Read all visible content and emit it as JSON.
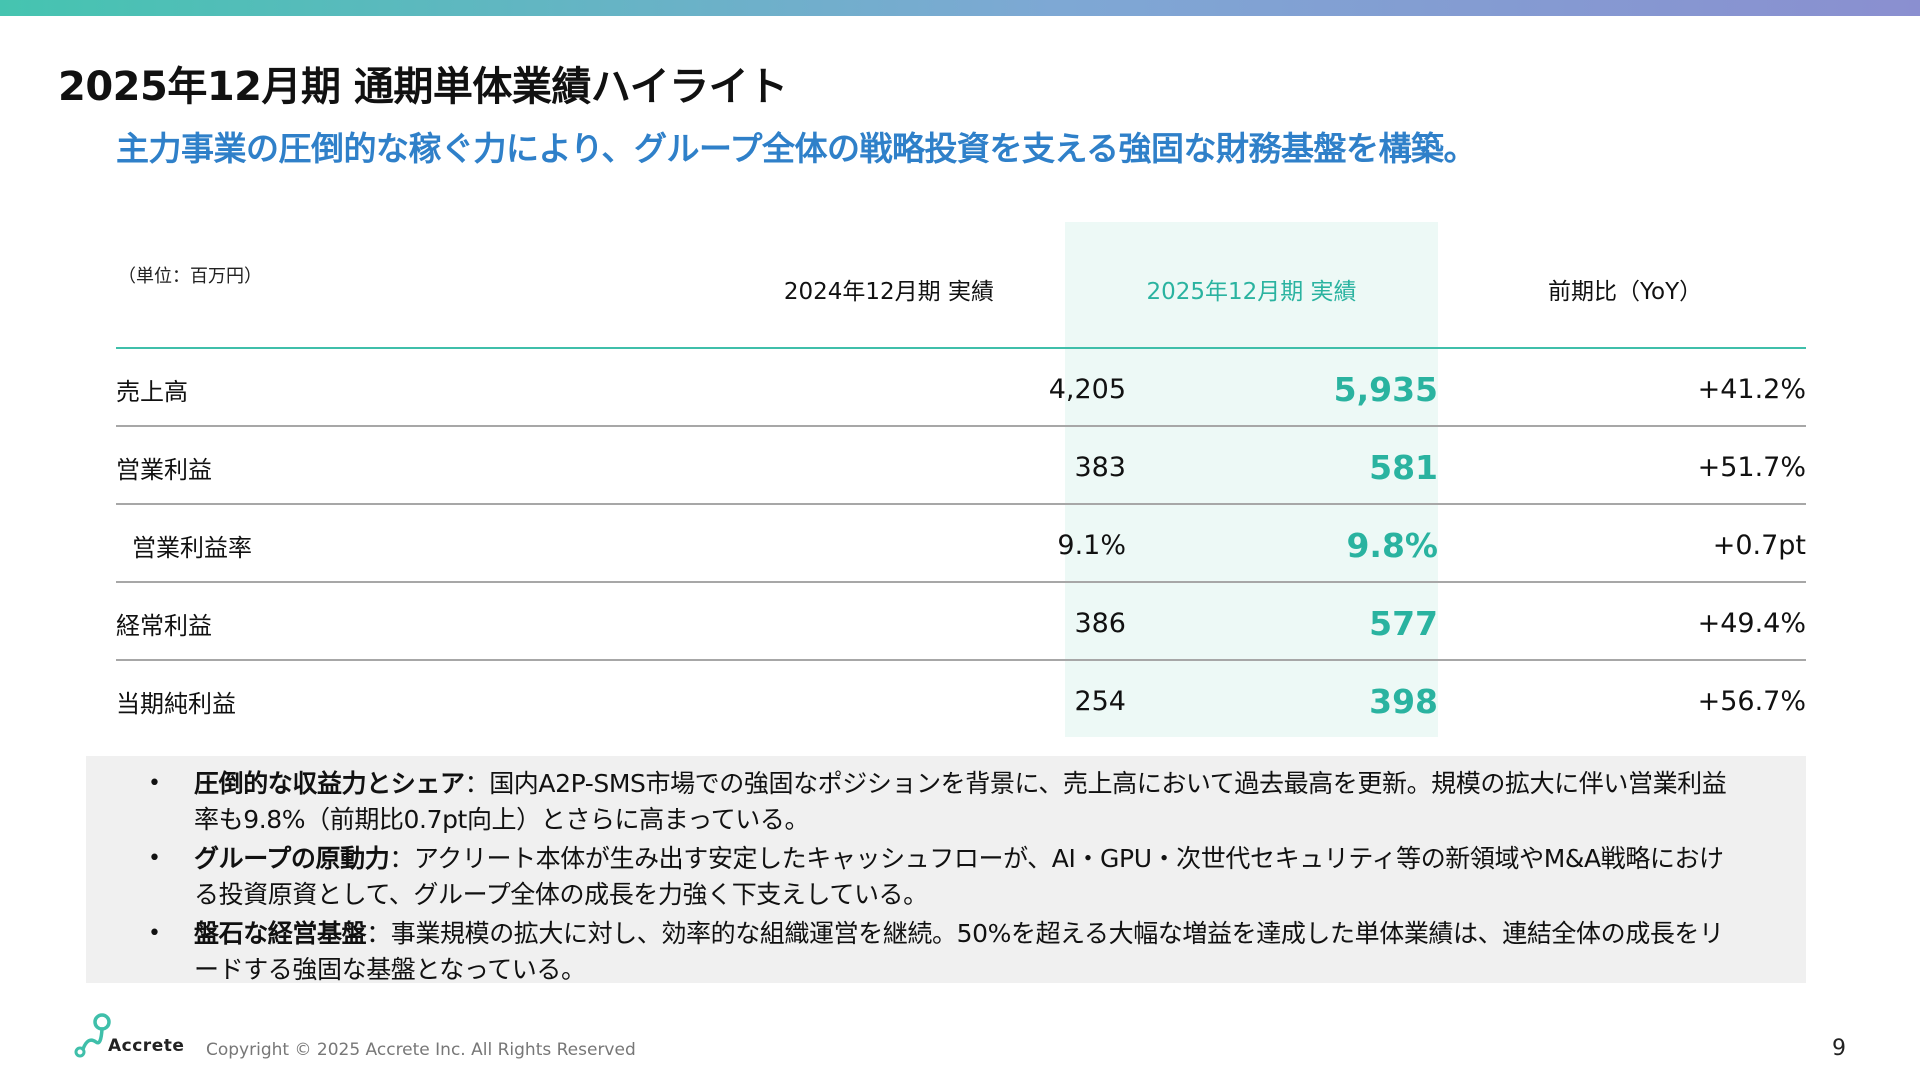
{
  "colors": {
    "accent_teal": "#2ab3a0",
    "subtitle_blue": "#2f80c9",
    "highlight_bg": "#edf9f6",
    "notes_bg": "#f0f0f0"
  },
  "title": "2025年12月期 通期単体業績ハイライト",
  "subtitle": "主力事業の圧倒的な稼ぐ力により、グループ全体の戦略投資を支える強固な財務基盤を構築。",
  "table": {
    "unit_note": "（単位：百万円）",
    "headers": {
      "prev": "2024年12月期 実績",
      "curr": "2025年12月期 実績",
      "yoy": "前期比（YoY）"
    },
    "rows": [
      {
        "label": "売上高",
        "prev": "4,205",
        "curr": "5,935",
        "yoy": "+41.2%"
      },
      {
        "label": "営業利益",
        "prev": "383",
        "curr": "581",
        "yoy": "+51.7%"
      },
      {
        "label": "営業利益率",
        "prev": "9.1%",
        "curr": "9.8%",
        "yoy": "+0.7pt"
      },
      {
        "label": "経常利益",
        "prev": "386",
        "curr": "577",
        "yoy": "+49.4%"
      },
      {
        "label": "当期純利益",
        "prev": "254",
        "curr": "398",
        "yoy": "+56.7%"
      }
    ]
  },
  "notes": [
    {
      "bullet": "•",
      "head": "圧倒的な収益力とシェア",
      "text": "：国内A2P-SMS市場での強固なポジションを背景に、売上高において過去最高を更新。規模の拡大に伴い営業利益率も9.8%（前期比0.7pt向上）とさらに高まっている。"
    },
    {
      "bullet": "•",
      "head": "グループの原動力",
      "text": "：アクリート本体が生み出す安定したキャッシュフローが、AI・GPU・次世代セキュリティ等の新領域やM&A戦略における投資原資として、グループ全体の成長を力強く下支えしている。"
    },
    {
      "bullet": "•",
      "head": "盤石な経営基盤",
      "text": "：事業規模の拡大に対し、効率的な組織運営を継続。50%を超える大幅な増益を達成した単体業績は、連結全体の成長をリードする強固な基盤となっている。"
    }
  ],
  "footer": {
    "logo_text": "Accrete",
    "copyright": "Copyright © 2025 Accrete Inc. All Rights Reserved",
    "page_number": "9"
  }
}
